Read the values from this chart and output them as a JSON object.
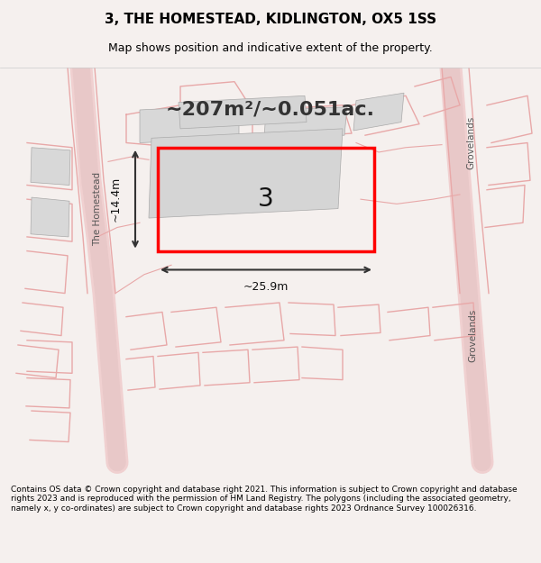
{
  "title": "3, THE HOMESTEAD, KIDLINGTON, OX5 1SS",
  "subtitle": "Map shows position and indicative extent of the property.",
  "footer": "Contains OS data © Crown copyright and database right 2021. This information is subject to Crown copyright and database rights 2023 and is reproduced with the permission of HM Land Registry. The polygons (including the associated geometry, namely x, y co-ordinates) are subject to Crown copyright and database rights 2023 Ordnance Survey 100026316.",
  "area_label": "~207m²/~0.051ac.",
  "number_label": "3",
  "width_label": "~25.9m",
  "height_label": "~14.4m",
  "bg_color": "#f5f0f0",
  "map_bg": "#ffffff",
  "plot_color": "#ff0000",
  "building_color": "#d0d0d0",
  "road_color": "#e8d8d8",
  "street_label_1": "The Homestead",
  "street_label_2": "Grovelands",
  "street_label_3": "Grovelands"
}
